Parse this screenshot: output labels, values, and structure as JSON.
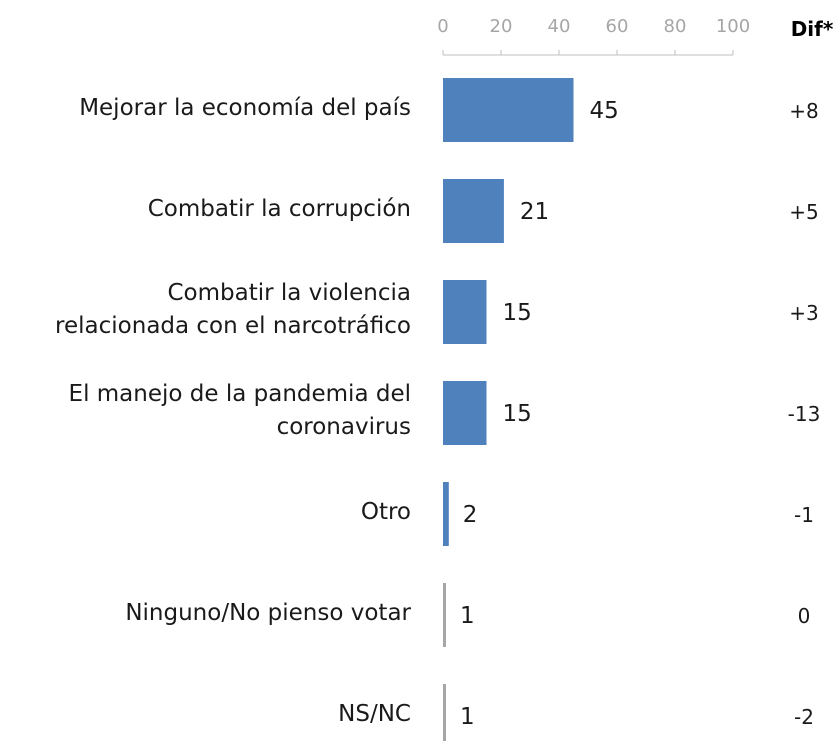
{
  "chart_data": {
    "type": "bar",
    "orientation": "horizontal",
    "categories": [
      "Mejorar la economía del país",
      "Combatir la corrupción",
      "Combatir la violencia relacionada con el narcotráfico",
      "El manejo de la pandemia del coronavirus",
      "Otro",
      "Ninguno/No pienso votar",
      "NS/NC"
    ],
    "category_lines": [
      [
        "Mejorar la economía del país"
      ],
      [
        "Combatir la corrupción"
      ],
      [
        "Combatir la violencia",
        "relacionada con el narcotráfico"
      ],
      [
        "El manejo de la pandemia del",
        "coronavirus"
      ],
      [
        "Otro"
      ],
      [
        "Ninguno/No pienso votar"
      ],
      [
        "NS/NC"
      ]
    ],
    "values": [
      45,
      21,
      15,
      15,
      2,
      1,
      1
    ],
    "xlim": [
      0,
      100
    ],
    "xticks": [
      "0",
      "20",
      "40",
      "60",
      "80",
      "100"
    ],
    "dif_header": "Dif*",
    "dif": [
      "+8",
      "+5",
      "+3",
      "-13",
      "-1",
      "0",
      "-2"
    ],
    "bar_color": "#4f81bd",
    "grid": false
  }
}
